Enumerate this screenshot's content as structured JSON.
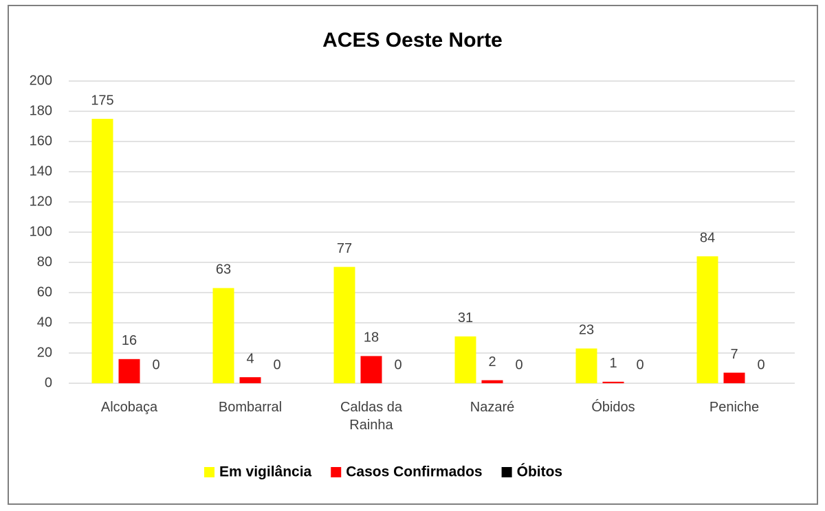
{
  "chart_data": {
    "type": "bar",
    "title": "ACES Oeste Norte",
    "categories": [
      "Alcobaça",
      "Bombarral",
      "Caldas da Rainha",
      "Nazaré",
      "Óbidos",
      "Peniche"
    ],
    "series": [
      {
        "name": "Em vigilância",
        "color": "#ffff00",
        "values": [
          175,
          63,
          77,
          31,
          23,
          84
        ]
      },
      {
        "name": "Casos Confirmados",
        "color": "#ff0000",
        "values": [
          16,
          4,
          18,
          2,
          1,
          7
        ]
      },
      {
        "name": "Óbitos",
        "color": "#000000",
        "values": [
          0,
          0,
          0,
          0,
          0,
          0
        ]
      }
    ],
    "ylim": [
      0,
      200
    ],
    "yticks": [
      0,
      20,
      40,
      60,
      80,
      100,
      120,
      140,
      160,
      180,
      200
    ],
    "grid": true,
    "legend": "bottom"
  }
}
